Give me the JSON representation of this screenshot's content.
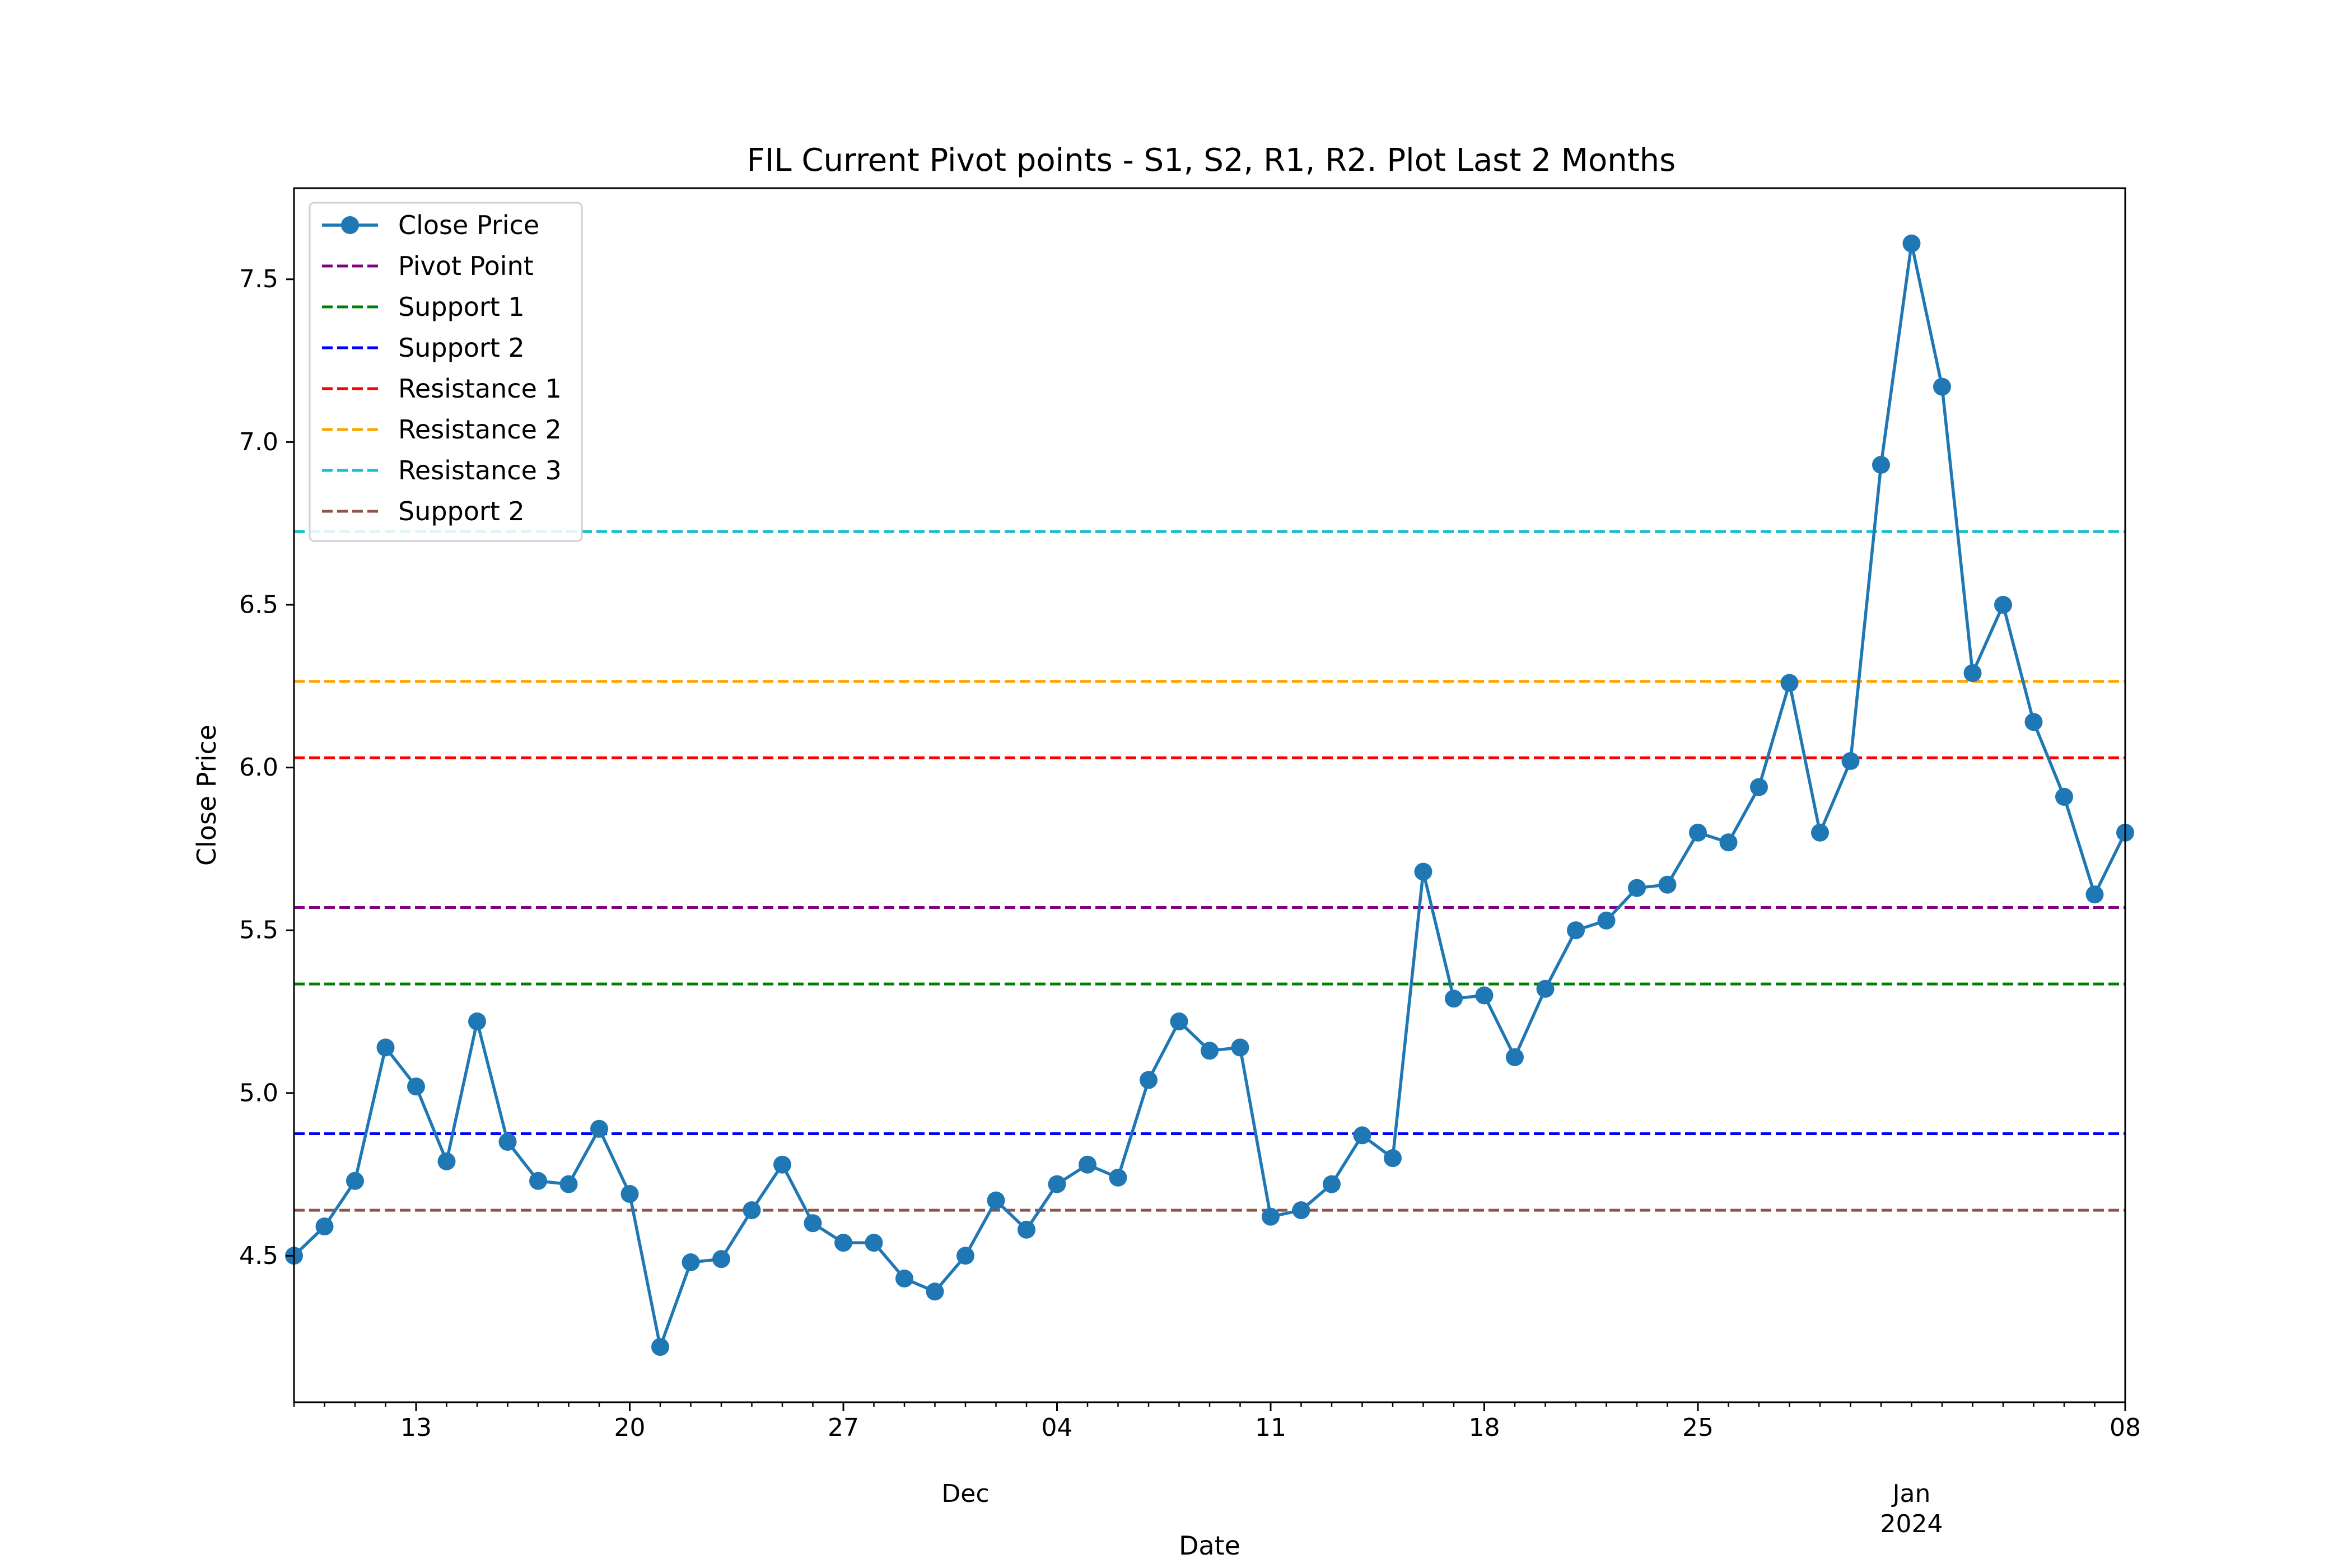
{
  "chart_data": {
    "type": "line",
    "title": "FIL Current Pivot points - S1, S2, R1, R2. Plot Last 2 Months",
    "xlabel": "Date",
    "ylabel": "Close Price",
    "ylim": [
      4.05,
      7.78
    ],
    "xlim": [
      "2023-11-09",
      "2024-01-08"
    ],
    "grid": false,
    "legend_position": "top-left",
    "y_ticks": [
      {
        "value": 4.5,
        "label": "4.5"
      },
      {
        "value": 5.0,
        "label": "5.0"
      },
      {
        "value": 5.5,
        "label": "5.5"
      },
      {
        "value": 6.0,
        "label": "6.0"
      },
      {
        "value": 6.5,
        "label": "6.5"
      },
      {
        "value": 7.0,
        "label": "7.0"
      },
      {
        "value": 7.5,
        "label": "7.5"
      }
    ],
    "x_ticks": [
      {
        "date": "2023-11-13",
        "label": "13"
      },
      {
        "date": "2023-11-20",
        "label": "20"
      },
      {
        "date": "2023-11-27",
        "label": "27"
      },
      {
        "date": "2023-12-04",
        "label": "04"
      },
      {
        "date": "2023-12-11",
        "label": "11"
      },
      {
        "date": "2023-12-18",
        "label": "18"
      },
      {
        "date": "2023-12-25",
        "label": "25"
      },
      {
        "date": "2024-01-08",
        "label": "08"
      }
    ],
    "x_major_labels": [
      {
        "date": "2023-12-01",
        "label": "Dec"
      },
      {
        "date": "2024-01-01",
        "label": "Jan",
        "sublabel": "2024"
      }
    ],
    "series": [
      {
        "name": "Close Price",
        "color": "#1f77b4",
        "style": "solid-marker",
        "x": [
          "2023-11-09",
          "2023-11-10",
          "2023-11-11",
          "2023-11-12",
          "2023-11-13",
          "2023-11-14",
          "2023-11-15",
          "2023-11-16",
          "2023-11-17",
          "2023-11-18",
          "2023-11-19",
          "2023-11-20",
          "2023-11-21",
          "2023-11-22",
          "2023-11-23",
          "2023-11-24",
          "2023-11-25",
          "2023-11-26",
          "2023-11-27",
          "2023-11-28",
          "2023-11-29",
          "2023-11-30",
          "2023-12-01",
          "2023-12-02",
          "2023-12-03",
          "2023-12-04",
          "2023-12-05",
          "2023-12-06",
          "2023-12-07",
          "2023-12-08",
          "2023-12-09",
          "2023-12-10",
          "2023-12-11",
          "2023-12-12",
          "2023-12-13",
          "2023-12-14",
          "2023-12-15",
          "2023-12-16",
          "2023-12-17",
          "2023-12-18",
          "2023-12-19",
          "2023-12-20",
          "2023-12-21",
          "2023-12-22",
          "2023-12-23",
          "2023-12-24",
          "2023-12-25",
          "2023-12-26",
          "2023-12-27",
          "2023-12-28",
          "2023-12-29",
          "2023-12-30",
          "2023-12-31",
          "2024-01-01",
          "2024-01-02",
          "2024-01-03",
          "2024-01-04",
          "2024-01-05",
          "2024-01-06",
          "2024-01-07",
          "2024-01-08"
        ],
        "values": [
          4.5,
          4.59,
          4.73,
          5.14,
          5.02,
          4.79,
          5.22,
          4.85,
          4.73,
          4.72,
          4.89,
          4.69,
          4.22,
          4.48,
          4.49,
          4.64,
          4.78,
          4.6,
          4.54,
          4.54,
          4.43,
          4.39,
          4.5,
          4.67,
          4.58,
          4.72,
          4.78,
          4.74,
          5.04,
          5.22,
          5.13,
          5.14,
          4.62,
          4.64,
          4.72,
          4.87,
          4.8,
          5.68,
          5.29,
          5.3,
          5.11,
          5.32,
          5.5,
          5.53,
          5.63,
          5.64,
          5.8,
          5.77,
          5.94,
          6.26,
          5.8,
          6.02,
          6.93,
          7.61,
          7.17,
          6.29,
          6.5,
          6.14,
          5.91,
          5.61,
          5.8
        ]
      },
      {
        "name": "Pivot Point",
        "color": "#800080",
        "style": "dashed",
        "level": 5.57
      },
      {
        "name": "Support 1",
        "color": "#008000",
        "style": "dashed",
        "level": 5.335
      },
      {
        "name": "Support 2",
        "color": "#0000ff",
        "style": "dashed",
        "level": 4.875
      },
      {
        "name": "Resistance 1",
        "color": "#ff0000",
        "style": "dashed",
        "level": 6.03
      },
      {
        "name": "Resistance 2",
        "color": "#ffa500",
        "style": "dashed",
        "level": 6.265
      },
      {
        "name": "Resistance 3",
        "color": "#17becf",
        "style": "dashed",
        "level": 6.725
      },
      {
        "name": "Support 2",
        "color": "#8c564b",
        "style": "dashed",
        "level": 4.64
      }
    ]
  }
}
